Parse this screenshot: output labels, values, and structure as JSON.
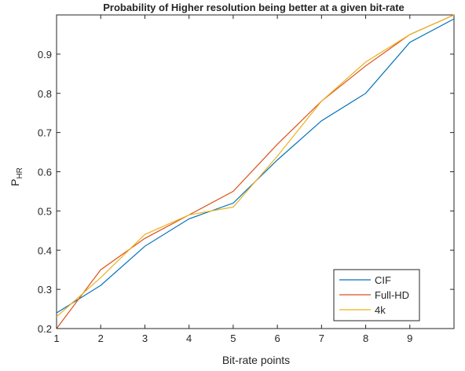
{
  "chart_data": {
    "type": "line",
    "title": "Probability of Higher resolution being better at a given bit-rate",
    "xlabel": "Bit-rate points",
    "ylabel_main": "P",
    "ylabel_sub": "HR",
    "xlim": [
      1,
      10
    ],
    "ylim": [
      0.2,
      1.0
    ],
    "xticks": [
      "1",
      "2",
      "3",
      "4",
      "5",
      "6",
      "7",
      "8",
      "9"
    ],
    "yticks": [
      "0.2",
      "0.3",
      "0.4",
      "0.5",
      "0.6",
      "0.7",
      "0.8",
      "0.9"
    ],
    "grid": false,
    "legend_position": "bottom-right",
    "x": [
      1,
      2,
      3,
      4,
      5,
      6,
      7,
      8,
      9,
      10
    ],
    "series": [
      {
        "name": "CIF",
        "color": "#0072BD",
        "values": [
          0.24,
          0.31,
          0.41,
          0.48,
          0.52,
          0.63,
          0.73,
          0.8,
          0.93,
          0.99
        ]
      },
      {
        "name": "Full-HD",
        "color": "#D95319",
        "values": [
          0.2,
          0.35,
          0.43,
          0.49,
          0.55,
          0.67,
          0.78,
          0.87,
          0.95,
          1.0
        ]
      },
      {
        "name": "4k",
        "color": "#EDB120",
        "values": [
          0.23,
          0.33,
          0.44,
          0.49,
          0.51,
          0.64,
          0.78,
          0.88,
          0.95,
          1.0
        ]
      }
    ]
  }
}
